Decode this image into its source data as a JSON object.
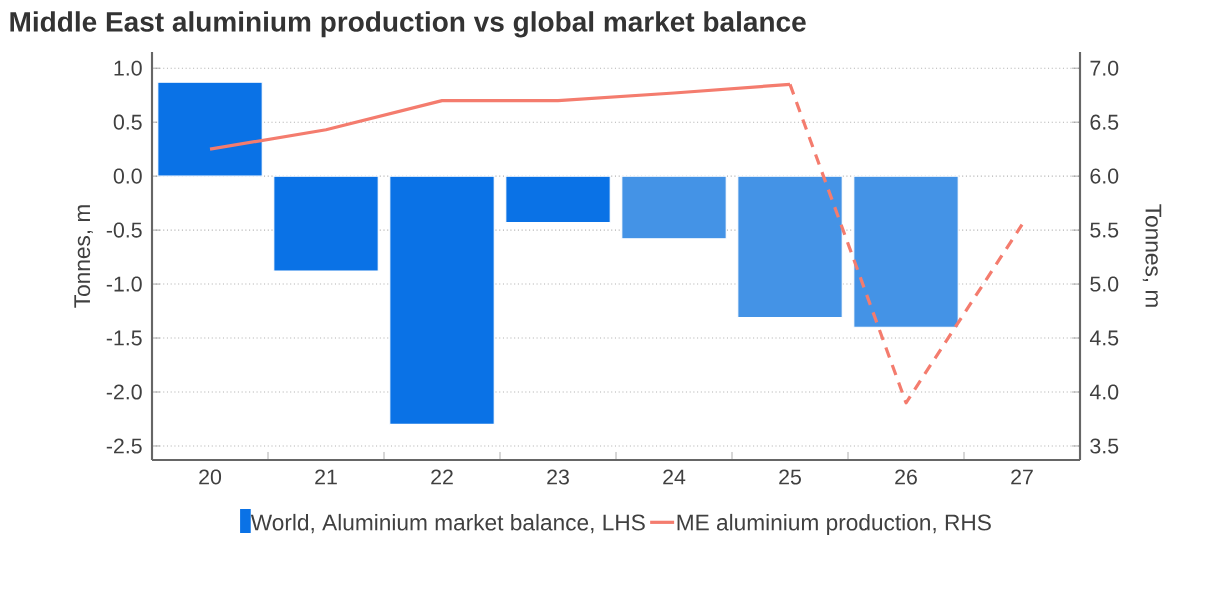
{
  "chart_data": {
    "type": "bar",
    "title": "Middle East aluminium production vs global market balance",
    "categories": [
      "20",
      "21",
      "22",
      "23",
      "24",
      "25",
      "26",
      "27"
    ],
    "series": [
      {
        "name": "World, Aluminium market balance, LHS",
        "colors": [
          "#0a72e6",
          "#0a72e6",
          "#0a72e6",
          "#0a72e6",
          "#4493e6",
          "#4493e6",
          "#4493e6",
          "#4493e6"
        ],
        "values": [
          0.87,
          -0.88,
          -2.3,
          -0.43,
          -0.58,
          -1.31,
          -1.4,
          null
        ]
      },
      {
        "name": "ME aluminium production, RHS",
        "type": "line",
        "axis": "y2",
        "color": "#f47c6e",
        "line_style": "solid",
        "values": [
          6.25,
          6.43,
          6.7,
          6.7,
          6.77,
          6.85,
          null,
          null
        ]
      },
      {
        "type": "line",
        "axis": "y2",
        "color": "#f47c6e",
        "line_style": "dashed",
        "values": [
          null,
          null,
          null,
          null,
          null,
          6.85,
          3.9,
          5.55
        ]
      }
    ],
    "ylabel": "Tonnes, m",
    "y2label": "Tonnes, m",
    "ylim": [
      -2.63,
      1.15
    ],
    "yticks": [
      {
        "value": -2.5,
        "label": "-2.5"
      },
      {
        "value": -2,
        "label": "-2.0"
      },
      {
        "value": -1.5,
        "label": "-1.5"
      },
      {
        "value": -1,
        "label": "-1.0"
      },
      {
        "value": -0.5,
        "label": "-0.5"
      },
      {
        "value": 0,
        "label": "0.0"
      },
      {
        "value": 0.5,
        "label": "0.5"
      },
      {
        "value": 1,
        "label": "1.0"
      }
    ],
    "y2lim": [
      3.37,
      7.15
    ],
    "y2ticks": [
      {
        "value": 3.5,
        "label": "3.5"
      },
      {
        "value": 4,
        "label": "4.0"
      },
      {
        "value": 4.5,
        "label": "4.5"
      },
      {
        "value": 5,
        "label": "5.0"
      },
      {
        "value": 5.5,
        "label": "5.5"
      },
      {
        "value": 6,
        "label": "6.0"
      },
      {
        "value": 6.5,
        "label": "6.5"
      },
      {
        "value": 7,
        "label": "7.0"
      }
    ],
    "grid": "y",
    "legend": "bottom"
  }
}
